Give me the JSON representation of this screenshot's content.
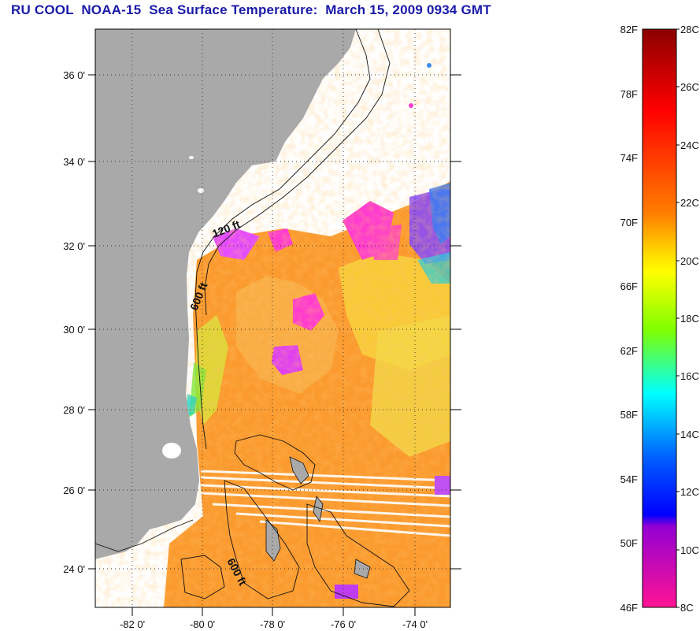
{
  "header": {
    "title": "RU COOL  NOAA-15  Sea Surface Temperature:  March 15, 2009 0934 GMT",
    "title_color": "#1a1aa8"
  },
  "map": {
    "latitude_labels": [
      "36 0'",
      "34 0'",
      "32 0'",
      "30 0'",
      "28 0'",
      "26 0'",
      "24 0'"
    ],
    "longitude_labels": [
      "-82 0'",
      "-80 0'",
      "-78 0'",
      "-76 0'",
      "-74 0'"
    ],
    "contour_labels": [
      "120 ft",
      "600 ft",
      "600 ft"
    ],
    "land_color": "#a9a9a9",
    "no_data_color": "#ffffff"
  },
  "colorbar": {
    "fahrenheit_labels": [
      "82F",
      "78F",
      "74F",
      "70F",
      "66F",
      "62F",
      "58F",
      "54F",
      "50F",
      "46F"
    ],
    "celsius_labels": [
      "28C",
      "26C",
      "24C",
      "22C",
      "20C",
      "18C",
      "16C",
      "14C",
      "12C",
      "10C",
      "8C"
    ],
    "gradient_colors": [
      "#8b0000",
      "#ff0000",
      "#ff7f00",
      "#ffff00",
      "#7fff00",
      "#00ffff",
      "#0000ff",
      "#9400d3",
      "#ff1493"
    ]
  }
}
